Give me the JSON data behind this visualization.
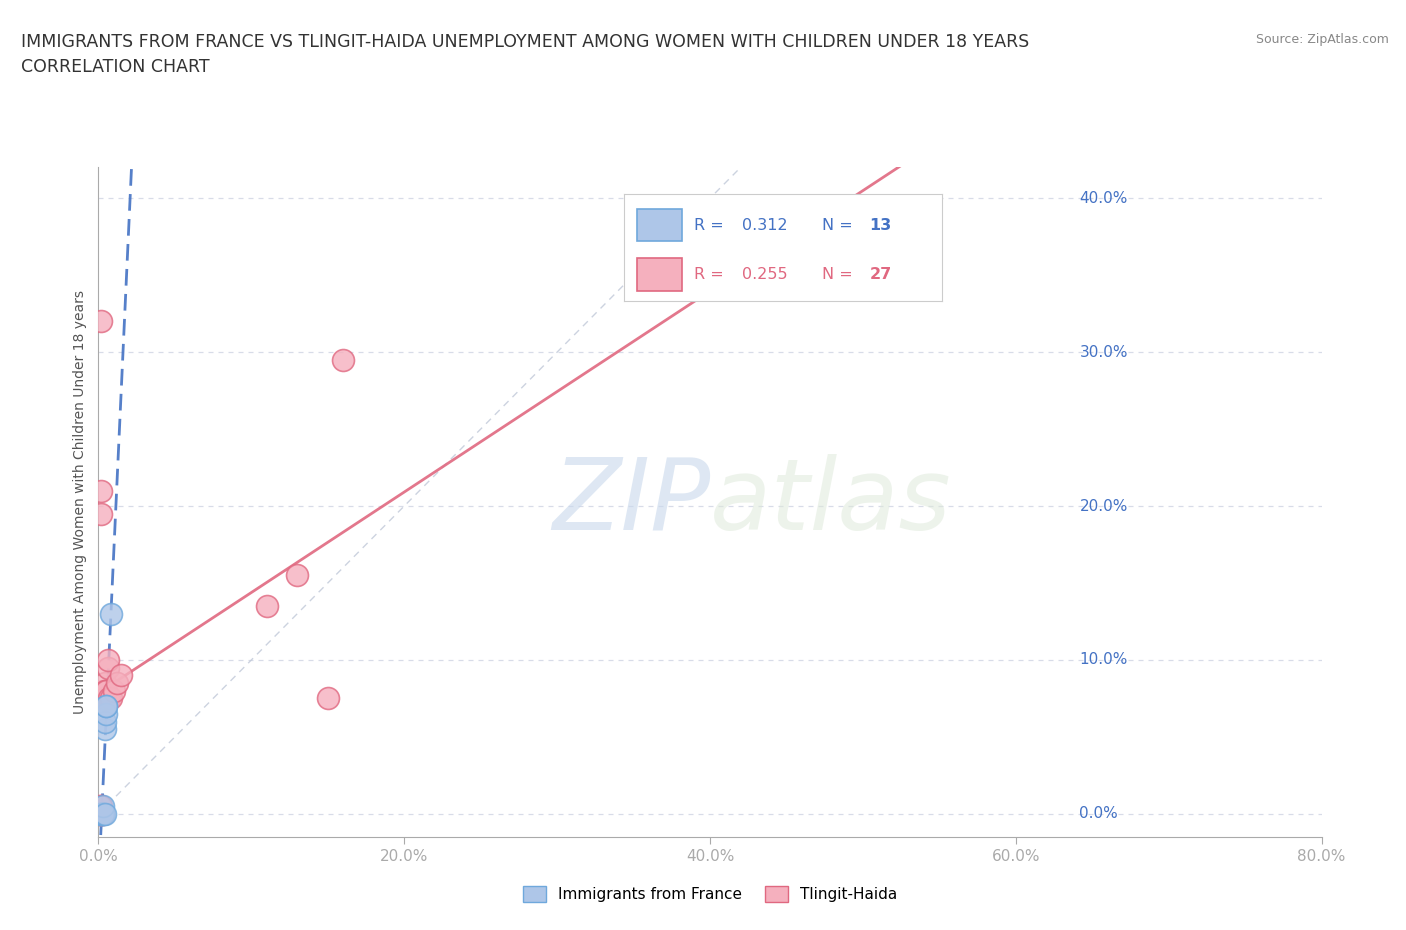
{
  "title": "IMMIGRANTS FROM FRANCE VS TLINGIT-HAIDA UNEMPLOYMENT AMONG WOMEN WITH CHILDREN UNDER 18 YEARS",
  "subtitle": "CORRELATION CHART",
  "source": "Source: ZipAtlas.com",
  "ylabel": "Unemployment Among Women with Children Under 18 years",
  "xlim": [
    0.0,
    0.8
  ],
  "ylim": [
    -0.015,
    0.42
  ],
  "xticks": [
    0.0,
    0.2,
    0.4,
    0.6,
    0.8
  ],
  "xtick_labels": [
    "0.0%",
    "20.0%",
    "40.0%",
    "60.0%",
    "80.0%"
  ],
  "yticks": [
    0.0,
    0.1,
    0.2,
    0.3,
    0.4
  ],
  "ytick_labels": [
    "0.0%",
    "10.0%",
    "20.0%",
    "30.0%",
    "40.0%"
  ],
  "france_color": "#aec6e8",
  "tlingit_color": "#f5b0be",
  "france_edge": "#6fa8dc",
  "tlingit_edge": "#e06880",
  "regline_france_color": "#4472c4",
  "regline_tlingit_color": "#e06880",
  "diagonal_color": "#c0c8d8",
  "R_france": 0.312,
  "N_france": 13,
  "R_tlingit": 0.255,
  "N_tlingit": 27,
  "france_points": [
    [
      0.001,
      0.0
    ],
    [
      0.002,
      0.0
    ],
    [
      0.002,
      0.0
    ],
    [
      0.003,
      0.0
    ],
    [
      0.003,
      0.0
    ],
    [
      0.003,
      0.005
    ],
    [
      0.004,
      0.0
    ],
    [
      0.004,
      0.055
    ],
    [
      0.004,
      0.06
    ],
    [
      0.005,
      0.065
    ],
    [
      0.005,
      0.07
    ],
    [
      0.005,
      0.07
    ],
    [
      0.008,
      0.13
    ]
  ],
  "tlingit_points": [
    [
      0.001,
      0.0
    ],
    [
      0.001,
      0.005
    ],
    [
      0.002,
      0.0
    ],
    [
      0.002,
      0.0
    ],
    [
      0.002,
      0.005
    ],
    [
      0.003,
      0.0
    ],
    [
      0.003,
      0.075
    ],
    [
      0.003,
      0.08
    ],
    [
      0.004,
      0.08
    ],
    [
      0.004,
      0.085
    ],
    [
      0.004,
      0.075
    ],
    [
      0.004,
      0.08
    ],
    [
      0.005,
      0.08
    ],
    [
      0.006,
      0.095
    ],
    [
      0.006,
      0.1
    ],
    [
      0.007,
      0.075
    ],
    [
      0.008,
      0.075
    ],
    [
      0.01,
      0.08
    ],
    [
      0.012,
      0.085
    ],
    [
      0.015,
      0.09
    ],
    [
      0.002,
      0.21
    ],
    [
      0.002,
      0.195
    ],
    [
      0.002,
      0.32
    ],
    [
      0.11,
      0.135
    ],
    [
      0.13,
      0.155
    ],
    [
      0.15,
      0.075
    ],
    [
      0.16,
      0.295
    ]
  ],
  "watermark_zip": "ZIP",
  "watermark_atlas": "atlas",
  "background_color": "#ffffff",
  "grid_color": "#d8dce8",
  "legend_france_text": "R = 0.312   N = 13",
  "legend_tlingit_text": "R = 0.255   N = 27"
}
